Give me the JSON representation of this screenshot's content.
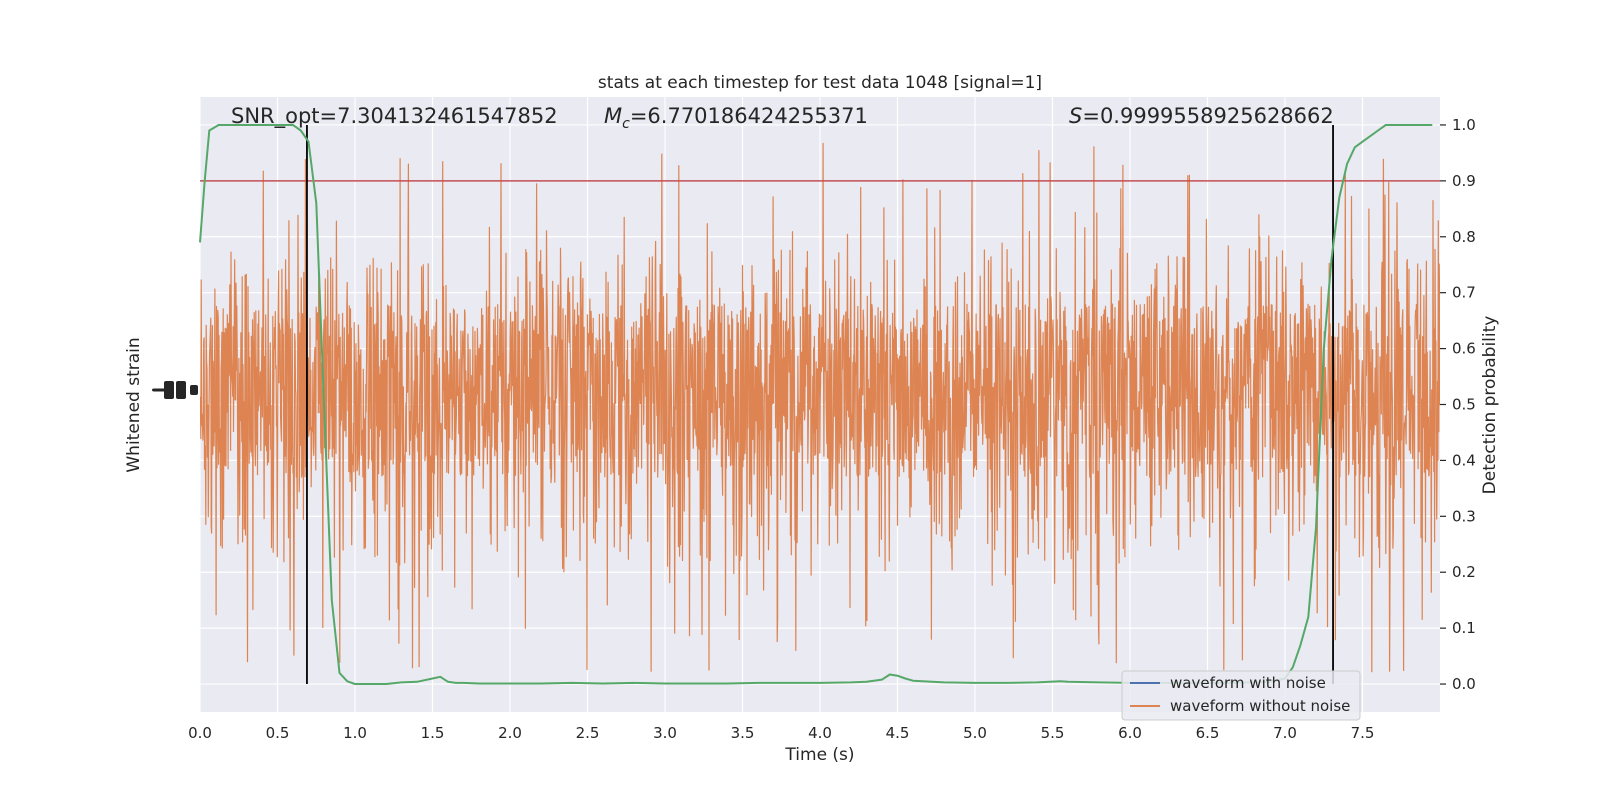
{
  "chart_data": {
    "type": "line",
    "title": "stats at each timestep for test data 1048 [signal=1]",
    "xlabel": "Time (s)",
    "ylabel_left": "Whitened strain",
    "ylabel_right": "Detection probability",
    "xlim": [
      0.0,
      8.0
    ],
    "ylim_right": [
      -0.05,
      1.05
    ],
    "x_ticks": [
      "0.0",
      "0.5",
      "1.0",
      "1.5",
      "2.0",
      "2.5",
      "3.0",
      "3.5",
      "4.0",
      "4.5",
      "5.0",
      "5.5",
      "6.0",
      "6.5",
      "7.0",
      "7.5"
    ],
    "x_tick_values": [
      0.0,
      0.5,
      1.0,
      1.5,
      2.0,
      2.5,
      3.0,
      3.5,
      4.0,
      4.5,
      5.0,
      5.5,
      6.0,
      6.5,
      7.0,
      7.5
    ],
    "right_ticks": [
      "0.0",
      "0.1",
      "0.2",
      "0.3",
      "0.4",
      "0.5",
      "0.6",
      "0.7",
      "0.8",
      "0.9",
      "1.0"
    ],
    "right_tick_values": [
      0.0,
      0.1,
      0.2,
      0.3,
      0.4,
      0.5,
      0.6,
      0.7,
      0.8,
      0.9,
      1.0
    ],
    "grid": true,
    "legend_position": "bottom-right",
    "annotations": {
      "snr": "SNR_opt=7.304132461547852",
      "mc_symbol": "M",
      "mc_sub": "c",
      "mc_value": "=6.770186424255371",
      "s_symbol": "S",
      "s_value": "=0.9999558925628662"
    },
    "threshold": {
      "value": 0.9,
      "color": "#c44e52"
    },
    "vertical_lines": [
      0.69,
      7.31
    ],
    "series": [
      {
        "name": "waveform with noise",
        "color": "#4c72b0",
        "kind": "strain",
        "visible": false
      },
      {
        "name": "waveform without noise",
        "color": "#dd8452",
        "kind": "strain",
        "band_low": 0.37,
        "band_high": 0.68,
        "spike_min": 0.0,
        "spike_max": 1.0
      },
      {
        "color": "#55a868",
        "kind": "probability",
        "x": [
          0.0,
          0.03,
          0.06,
          0.12,
          0.2,
          0.3,
          0.4,
          0.5,
          0.55,
          0.6,
          0.65,
          0.7,
          0.75,
          0.8,
          0.85,
          0.9,
          0.95,
          1.0,
          1.1,
          1.2,
          1.3,
          1.4,
          1.5,
          1.55,
          1.6,
          1.65,
          1.7,
          1.8,
          1.9,
          2.0,
          2.2,
          2.4,
          2.6,
          2.8,
          3.0,
          3.2,
          3.4,
          3.6,
          3.8,
          4.0,
          4.2,
          4.3,
          4.4,
          4.45,
          4.5,
          4.55,
          4.6,
          4.8,
          5.0,
          5.2,
          5.4,
          5.55,
          5.6,
          5.8,
          6.0,
          6.2,
          6.4,
          6.6,
          6.8,
          6.9,
          7.0,
          7.05,
          7.1,
          7.15,
          7.2,
          7.25,
          7.3,
          7.35,
          7.4,
          7.45,
          7.5,
          7.55,
          7.6,
          7.65,
          7.7,
          7.8,
          7.9,
          7.95
        ],
        "y": [
          0.79,
          0.9,
          0.99,
          1.0,
          1.0,
          1.0,
          1.0,
          1.0,
          1.0,
          1.0,
          0.99,
          0.97,
          0.86,
          0.5,
          0.15,
          0.02,
          0.005,
          0.0,
          0.0,
          0.0,
          0.003,
          0.004,
          0.01,
          0.013,
          0.004,
          0.002,
          0.002,
          0.001,
          0.001,
          0.001,
          0.001,
          0.002,
          0.001,
          0.002,
          0.001,
          0.001,
          0.001,
          0.002,
          0.002,
          0.002,
          0.003,
          0.004,
          0.008,
          0.017,
          0.015,
          0.01,
          0.006,
          0.003,
          0.002,
          0.002,
          0.003,
          0.005,
          0.004,
          0.003,
          0.002,
          0.002,
          0.002,
          0.002,
          0.003,
          0.004,
          0.01,
          0.03,
          0.07,
          0.12,
          0.28,
          0.6,
          0.76,
          0.87,
          0.93,
          0.96,
          0.97,
          0.98,
          0.99,
          1.0,
          1.0,
          1.0,
          1.0,
          1.0
        ]
      }
    ]
  }
}
